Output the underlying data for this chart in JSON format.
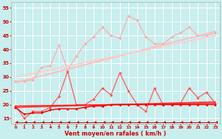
{
  "xlabel": "Vent moyen/en rafales ( km/h )",
  "background_color": "#c8eeee",
  "grid_color": "#ffffff",
  "x_ticks": [
    0,
    1,
    2,
    3,
    4,
    5,
    6,
    7,
    8,
    9,
    10,
    11,
    12,
    13,
    14,
    15,
    16,
    17,
    18,
    19,
    20,
    21,
    22,
    23
  ],
  "ylim": [
    13,
    57
  ],
  "yticks": [
    15,
    20,
    25,
    30,
    35,
    40,
    45,
    50,
    55
  ],
  "series": [
    {
      "name": "gust_upper",
      "x": [
        0,
        1,
        2,
        3,
        4,
        5,
        6,
        7,
        8,
        9,
        10,
        11,
        12,
        13,
        14,
        15,
        16,
        17,
        18,
        19,
        20,
        21,
        22,
        23
      ],
      "y": [
        28.5,
        28.5,
        29.0,
        33.5,
        34.0,
        41.5,
        32.5,
        37.5,
        42.0,
        44.5,
        48.0,
        45.0,
        44.0,
        52.0,
        50.5,
        44.5,
        42.0,
        42.0,
        44.5,
        46.0,
        48.0,
        45.0,
        45.0,
        46.0
      ],
      "color": "#ffaaaa",
      "linewidth": 0.9,
      "marker": "D",
      "markersize": 2.2
    },
    {
      "name": "trend_upper1",
      "x": [
        0,
        23
      ],
      "y": [
        28.0,
        46.5
      ],
      "color": "#ffbbbb",
      "linewidth": 1.3,
      "marker": null
    },
    {
      "name": "trend_upper2",
      "x": [
        0,
        23
      ],
      "y": [
        30.0,
        45.0
      ],
      "color": "#ffcccc",
      "linewidth": 1.3,
      "marker": null
    },
    {
      "name": "wind_lower_jagged",
      "x": [
        0,
        1,
        2,
        3,
        4,
        5,
        6,
        7,
        8,
        9,
        10,
        11,
        12,
        13,
        14,
        15,
        16,
        17,
        18,
        19,
        20,
        21,
        22,
        23
      ],
      "y": [
        19.5,
        15.0,
        17.5,
        17.5,
        19.0,
        23.0,
        32.0,
        20.0,
        20.0,
        22.0,
        26.0,
        23.5,
        31.5,
        25.0,
        20.0,
        17.5,
        26.0,
        20.0,
        20.0,
        20.5,
        26.0,
        22.5,
        24.5,
        20.5
      ],
      "color": "#ff5555",
      "linewidth": 0.9,
      "marker": "D",
      "markersize": 2.2
    },
    {
      "name": "trend_lower1",
      "x": [
        0,
        23
      ],
      "y": [
        19.0,
        21.0
      ],
      "color": "#ff3333",
      "linewidth": 1.2,
      "marker": null
    },
    {
      "name": "trend_lower2",
      "x": [
        0,
        23
      ],
      "y": [
        19.5,
        20.5
      ],
      "color": "#ff2222",
      "linewidth": 1.2,
      "marker": null
    },
    {
      "name": "wind_lower_flat",
      "x": [
        0,
        1,
        2,
        3,
        4,
        5,
        6,
        7,
        8,
        9,
        10,
        11,
        12,
        13,
        14,
        15,
        16,
        17,
        18,
        19,
        20,
        21,
        22,
        23
      ],
      "y": [
        19.0,
        16.5,
        17.0,
        17.0,
        18.0,
        18.5,
        18.5,
        18.5,
        19.0,
        19.5,
        19.5,
        20.0,
        20.0,
        20.0,
        20.0,
        20.0,
        20.0,
        20.0,
        20.0,
        20.0,
        20.0,
        20.0,
        20.0,
        20.0
      ],
      "color": "#ee0000",
      "linewidth": 1.1,
      "marker": "D",
      "markersize": 2.0
    },
    {
      "name": "bottom_arrows",
      "x": [
        0,
        1,
        2,
        3,
        4,
        5,
        6,
        7,
        8,
        9,
        10,
        11,
        12,
        13,
        14,
        15,
        16,
        17,
        18,
        19,
        20,
        21,
        22,
        23
      ],
      "y": [
        13.5,
        13.5,
        13.5,
        13.5,
        13.5,
        13.5,
        13.5,
        13.5,
        13.5,
        13.5,
        13.5,
        13.5,
        13.5,
        13.5,
        13.5,
        13.5,
        13.5,
        13.5,
        13.5,
        13.5,
        13.5,
        13.5,
        13.5,
        13.5
      ],
      "color": "#cc0000",
      "linewidth": 0.7,
      "marker": 4,
      "markersize": 3.5
    }
  ]
}
